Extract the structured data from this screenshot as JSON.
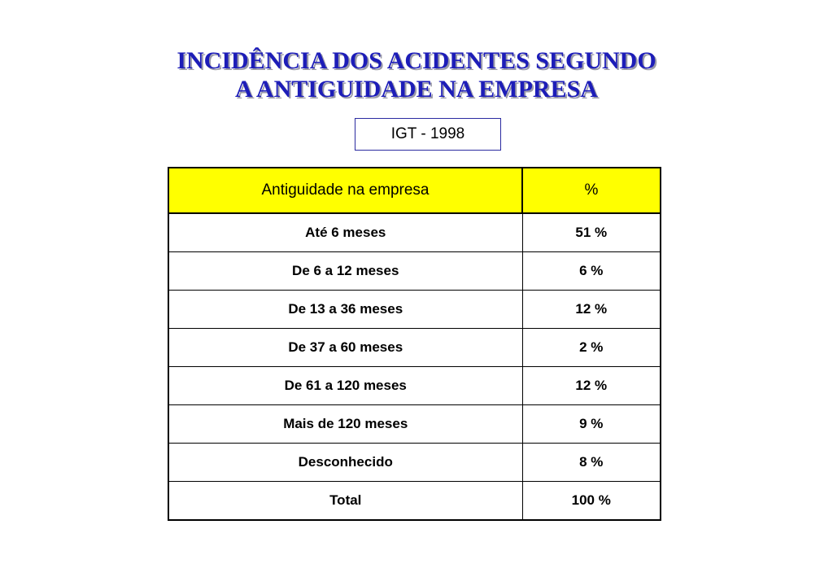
{
  "title": {
    "line1": "INCIDÊNCIA DOS ACIDENTES SEGUNDO",
    "line2": "A ANTIGUIDADE NA EMPRESA"
  },
  "source": "IGT - 1998",
  "table": {
    "headers": [
      "Antiguidade na empresa",
      "%"
    ],
    "rows": [
      [
        "Até 6 meses",
        "51 %"
      ],
      [
        "De 6 a 12 meses",
        "6 %"
      ],
      [
        "De 13 a 36 meses",
        "12 %"
      ],
      [
        "De 37 a 60 meses",
        "2 %"
      ],
      [
        "De 61 a 120 meses",
        "12 %"
      ],
      [
        "Mais de 120 meses",
        "9 %"
      ],
      [
        "Desconhecido",
        "8 %"
      ],
      [
        "Total",
        "100 %"
      ]
    ]
  },
  "colors": {
    "title": "#1d1db8",
    "header_bg": "#ffff00",
    "source_border": "#2a2aa0"
  }
}
